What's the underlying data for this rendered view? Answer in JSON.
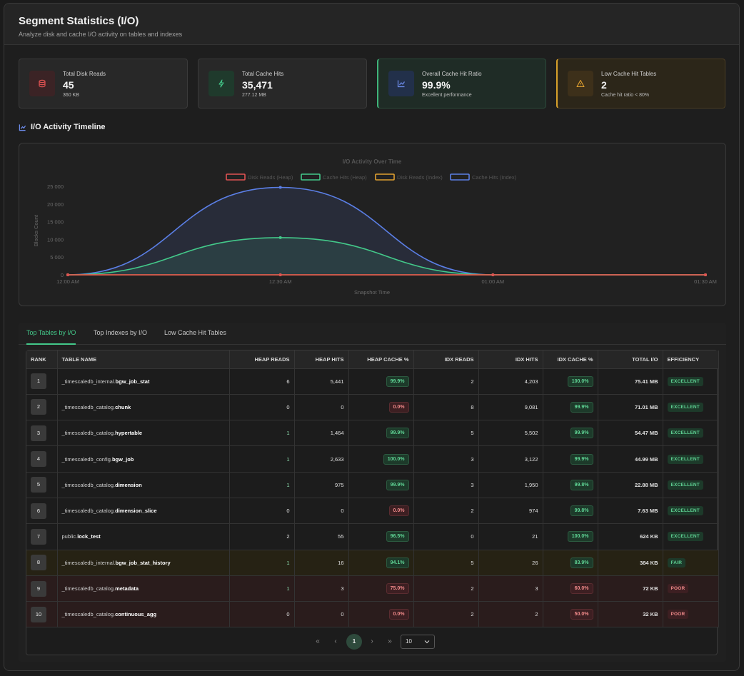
{
  "header": {
    "title": "Segment Statistics (I/O)",
    "subtitle": "Analyze disk and cache I/O activity on tables and indexes"
  },
  "cards": [
    {
      "label": "Total Disk Reads",
      "value": "45",
      "sub": "360 KB",
      "icon": "database-icon",
      "color": "#e05252"
    },
    {
      "label": "Total Cache Hits",
      "value": "35,471",
      "sub": "277.12 MB",
      "icon": "lightning-icon",
      "color": "#43c98a"
    },
    {
      "label": "Overall Cache Hit Ratio",
      "value": "99.9%",
      "sub": "Excellent performance",
      "icon": "chart-line-icon",
      "color": "#5b7fe6"
    },
    {
      "label": "Low Cache Hit Tables",
      "value": "2",
      "sub": "Cache hit ratio < 80%",
      "icon": "warning-icon",
      "color": "#e0a030"
    }
  ],
  "section": {
    "timeline_title": "I/O Activity Timeline"
  },
  "chart_data": {
    "type": "area",
    "title": "I/O Activity Over Time",
    "xlabel": "Snapshot Time",
    "ylabel": "Blocks Count",
    "categories": [
      "12:00 AM",
      "12:30 AM",
      "01:00 AM",
      "01:30 AM"
    ],
    "ylim": [
      0,
      25000
    ],
    "yticks": [
      "0",
      "5 000",
      "10 000",
      "15 000",
      "20 000",
      "25 000"
    ],
    "series": [
      {
        "name": "Disk Reads (Heap)",
        "color": "#e05252",
        "values": [
          0,
          0,
          0,
          0
        ]
      },
      {
        "name": "Cache Hits (Heap)",
        "color": "#43c98a",
        "values": [
          0,
          10500,
          0,
          0
        ]
      },
      {
        "name": "Disk Reads (Index)",
        "color": "#e0a030",
        "values": [
          0,
          0,
          0,
          0
        ]
      },
      {
        "name": "Cache Hits (Index)",
        "color": "#5b7fe6",
        "values": [
          0,
          24700,
          0,
          0
        ]
      }
    ],
    "legend": "top-center",
    "grid": false
  },
  "tabs": [
    "Top Tables by I/O",
    "Top Indexes by I/O",
    "Low Cache Hit Tables"
  ],
  "table": {
    "headers": [
      "RANK",
      "TABLE NAME",
      "HEAP READS",
      "HEAP HITS",
      "HEAP CACHE %",
      "IDX READS",
      "IDX HITS",
      "IDX CACHE %",
      "TOTAL I/O",
      "EFFICIENCY"
    ],
    "rows": [
      {
        "rank": "1",
        "schema": "_timescaledb_internal.",
        "name": "bgw_job_stat",
        "heap_reads": "6",
        "heap_hits": "5,441",
        "heap_cache": "99.9%",
        "idx_reads": "2",
        "idx_hits": "4,203",
        "idx_cache": "100.0%",
        "total": "75.41 MB",
        "eff": "EXCELLENT"
      },
      {
        "rank": "2",
        "schema": "_timescaledb_catalog.",
        "name": "chunk",
        "heap_reads": "0",
        "heap_hits": "0",
        "heap_cache": "0.0%",
        "idx_reads": "8",
        "idx_hits": "9,081",
        "idx_cache": "99.9%",
        "total": "71.01 MB",
        "eff": "EXCELLENT"
      },
      {
        "rank": "3",
        "schema": "_timescaledb_catalog.",
        "name": "hypertable",
        "heap_reads": "1",
        "heap_hits": "1,464",
        "heap_cache": "99.9%",
        "idx_reads": "5",
        "idx_hits": "5,502",
        "idx_cache": "99.9%",
        "total": "54.47 MB",
        "eff": "EXCELLENT"
      },
      {
        "rank": "4",
        "schema": "_timescaledb_config.",
        "name": "bgw_job",
        "heap_reads": "1",
        "heap_hits": "2,633",
        "heap_cache": "100.0%",
        "idx_reads": "3",
        "idx_hits": "3,122",
        "idx_cache": "99.9%",
        "total": "44.99 MB",
        "eff": "EXCELLENT"
      },
      {
        "rank": "5",
        "schema": "_timescaledb_catalog.",
        "name": "dimension",
        "heap_reads": "1",
        "heap_hits": "975",
        "heap_cache": "99.9%",
        "idx_reads": "3",
        "idx_hits": "1,950",
        "idx_cache": "99.8%",
        "total": "22.88 MB",
        "eff": "EXCELLENT"
      },
      {
        "rank": "6",
        "schema": "_timescaledb_catalog.",
        "name": "dimension_slice",
        "heap_reads": "0",
        "heap_hits": "0",
        "heap_cache": "0.0%",
        "idx_reads": "2",
        "idx_hits": "974",
        "idx_cache": "99.8%",
        "total": "7.63 MB",
        "eff": "EXCELLENT"
      },
      {
        "rank": "7",
        "schema": "public.",
        "name": "lock_test",
        "heap_reads": "2",
        "heap_hits": "55",
        "heap_cache": "96.5%",
        "idx_reads": "0",
        "idx_hits": "21",
        "idx_cache": "100.0%",
        "total": "624 KB",
        "eff": "EXCELLENT"
      },
      {
        "rank": "8",
        "schema": "_timescaledb_internal.",
        "name": "bgw_job_stat_history",
        "heap_reads": "1",
        "heap_hits": "16",
        "heap_cache": "94.1%",
        "idx_reads": "5",
        "idx_hits": "26",
        "idx_cache": "83.9%",
        "total": "384 KB",
        "eff": "FAIR"
      },
      {
        "rank": "9",
        "schema": "_timescaledb_catalog.",
        "name": "metadata",
        "heap_reads": "1",
        "heap_hits": "3",
        "heap_cache": "75.0%",
        "idx_reads": "2",
        "idx_hits": "3",
        "idx_cache": "60.0%",
        "total": "72 KB",
        "eff": "POOR"
      },
      {
        "rank": "10",
        "schema": "_timescaledb_catalog.",
        "name": "continuous_agg",
        "heap_reads": "0",
        "heap_hits": "0",
        "heap_cache": "0.0%",
        "idx_reads": "2",
        "idx_hits": "2",
        "idx_cache": "50.0%",
        "total": "32 KB",
        "eff": "POOR"
      }
    ]
  },
  "pager": {
    "first": "«",
    "prev": "‹",
    "current": "1",
    "next": "›",
    "last": "»",
    "page_size": "10"
  }
}
